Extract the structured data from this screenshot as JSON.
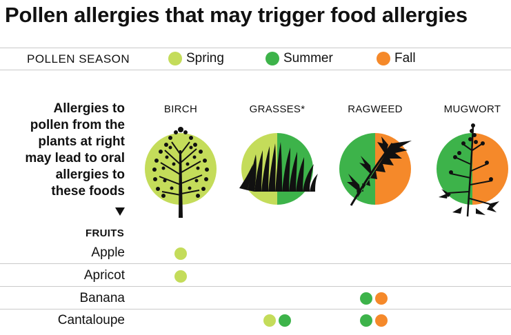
{
  "title": "Pollen allergies that may trigger food allergies",
  "legend": {
    "label": "POLLEN SEASON",
    "items": [
      {
        "name": "Spring",
        "color": "#c4dc5a"
      },
      {
        "name": "Summer",
        "color": "#3db34a"
      },
      {
        "name": "Fall",
        "color": "#f5892a"
      }
    ]
  },
  "intro_lines": [
    "Allergies to",
    "pollen from the",
    "plants at right",
    "may lead to oral",
    "allergies to",
    "these foods"
  ],
  "plants": [
    {
      "name": "BIRCH",
      "seasons": [
        "Spring"
      ],
      "icon": "birch-tree-icon"
    },
    {
      "name": "GRASSES*",
      "seasons": [
        "Spring",
        "Summer"
      ],
      "icon": "grass-icon"
    },
    {
      "name": "RAGWEED",
      "seasons": [
        "Summer",
        "Fall"
      ],
      "icon": "ragweed-icon"
    },
    {
      "name": "MUGWORT",
      "seasons": [
        "Summer",
        "Fall"
      ],
      "icon": "mugwort-icon"
    }
  ],
  "fruits_heading": "FRUITS",
  "foods": [
    {
      "name": "Apple",
      "marks": [
        {
          "plant": "BIRCH",
          "seasons": [
            "Spring"
          ]
        }
      ]
    },
    {
      "name": "Apricot",
      "marks": [
        {
          "plant": "BIRCH",
          "seasons": [
            "Spring"
          ]
        }
      ]
    },
    {
      "name": "Banana",
      "marks": [
        {
          "plant": "RAGWEED",
          "seasons": [
            "Summer",
            "Fall"
          ]
        }
      ]
    },
    {
      "name": "Cantaloupe",
      "marks": [
        {
          "plant": "GRASSES*",
          "seasons": [
            "Spring",
            "Summer"
          ]
        },
        {
          "plant": "RAGWEED",
          "seasons": [
            "Summer",
            "Fall"
          ]
        }
      ]
    }
  ]
}
